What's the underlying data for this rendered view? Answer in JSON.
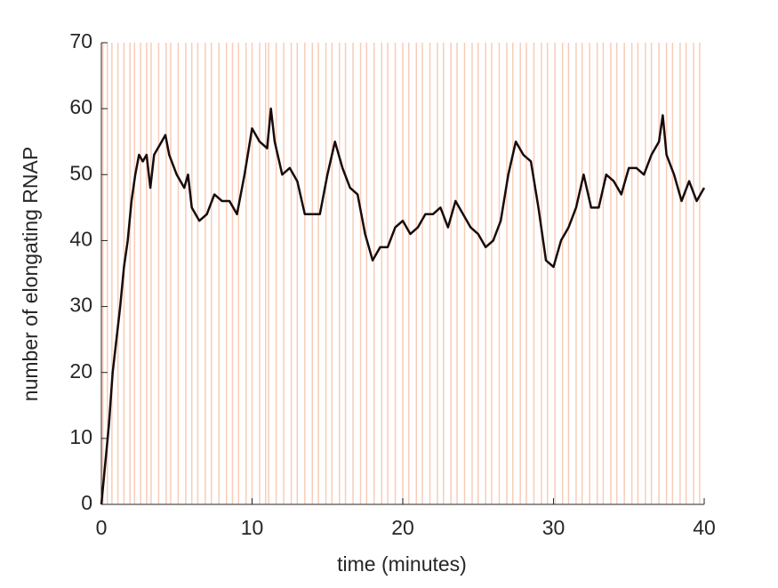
{
  "chart_data": {
    "type": "line",
    "xlabel": "time (minutes)",
    "ylabel": "number of elongating RNAP",
    "xlim": [
      0,
      40
    ],
    "xticks": [
      0,
      10,
      20,
      30,
      40
    ],
    "ylim": [
      0,
      70
    ],
    "yticks": [
      0,
      10,
      20,
      30,
      40,
      50,
      60,
      70
    ],
    "event_color": "#f2a27e",
    "event_times": [
      0.1,
      0.4,
      0.7,
      1.1,
      1.5,
      1.9,
      2.2,
      2.6,
      3.0,
      3.3,
      3.8,
      4.3,
      4.6,
      5.1,
      5.6,
      6.0,
      6.4,
      6.9,
      7.3,
      7.8,
      8.3,
      8.7,
      9.1,
      9.6,
      10.0,
      10.5,
      10.9,
      11.1,
      11.6,
      12.1,
      12.6,
      13.0,
      13.5,
      14.0,
      14.4,
      14.9,
      15.3,
      15.8,
      16.2,
      16.7,
      17.2,
      17.6,
      18.1,
      18.6,
      19.0,
      19.5,
      20.0,
      20.4,
      20.9,
      21.3,
      21.8,
      22.3,
      22.7,
      23.2,
      23.6,
      24.1,
      24.6,
      25.0,
      25.5,
      25.9,
      26.4,
      26.9,
      27.3,
      27.8,
      28.2,
      28.7,
      29.2,
      29.6,
      30.1,
      30.6,
      31.0,
      31.5,
      31.9,
      32.4,
      32.9,
      33.3,
      33.8,
      34.2,
      34.7,
      35.2,
      35.6,
      36.1,
      36.5,
      37.0,
      37.5,
      37.9,
      38.4,
      38.8,
      39.3,
      39.7
    ],
    "series": [
      {
        "color": "#1a0a0a",
        "x": [
          0,
          0.25,
          0.5,
          0.75,
          1,
          1.25,
          1.5,
          1.75,
          2,
          2.25,
          2.5,
          2.75,
          3,
          3.25,
          3.5,
          4,
          4.25,
          4.5,
          5,
          5.5,
          5.75,
          6,
          6.5,
          7,
          7.5,
          8,
          8.5,
          9,
          9.5,
          10,
          10.5,
          11,
          11.25,
          11.5,
          12,
          12.5,
          13,
          13.5,
          14,
          14.5,
          15,
          15.5,
          16,
          16.5,
          17,
          17.5,
          18,
          18.5,
          19,
          19.5,
          20,
          20.5,
          21,
          21.5,
          22,
          22.5,
          23,
          23.5,
          24,
          24.5,
          25,
          25.5,
          26,
          26.5,
          27,
          27.5,
          28,
          28.5,
          29,
          29.5,
          30,
          30.5,
          31,
          31.5,
          32,
          32.5,
          33,
          33.5,
          34,
          34.5,
          35,
          35.5,
          36,
          36.5,
          37,
          37.25,
          37.5,
          38,
          38.5,
          39,
          39.5,
          40
        ],
        "values": [
          0,
          6,
          12,
          20,
          25,
          30,
          36,
          40,
          46,
          50,
          53,
          52,
          53,
          48,
          53,
          55,
          56,
          53,
          50,
          48,
          50,
          45,
          43,
          44,
          47,
          46,
          46,
          44,
          50,
          57,
          55,
          54,
          60,
          55,
          50,
          51,
          49,
          44,
          44,
          44,
          50,
          55,
          51,
          48,
          47,
          41,
          37,
          39,
          39,
          42,
          43,
          41,
          42,
          44,
          44,
          45,
          42,
          46,
          44,
          42,
          41,
          39,
          40,
          43,
          50,
          55,
          53,
          52,
          45,
          37,
          36,
          40,
          42,
          45,
          50,
          45,
          45,
          50,
          49,
          47,
          51,
          51,
          50,
          53,
          55,
          59,
          53,
          50,
          46,
          49,
          46,
          48
        ]
      }
    ]
  }
}
